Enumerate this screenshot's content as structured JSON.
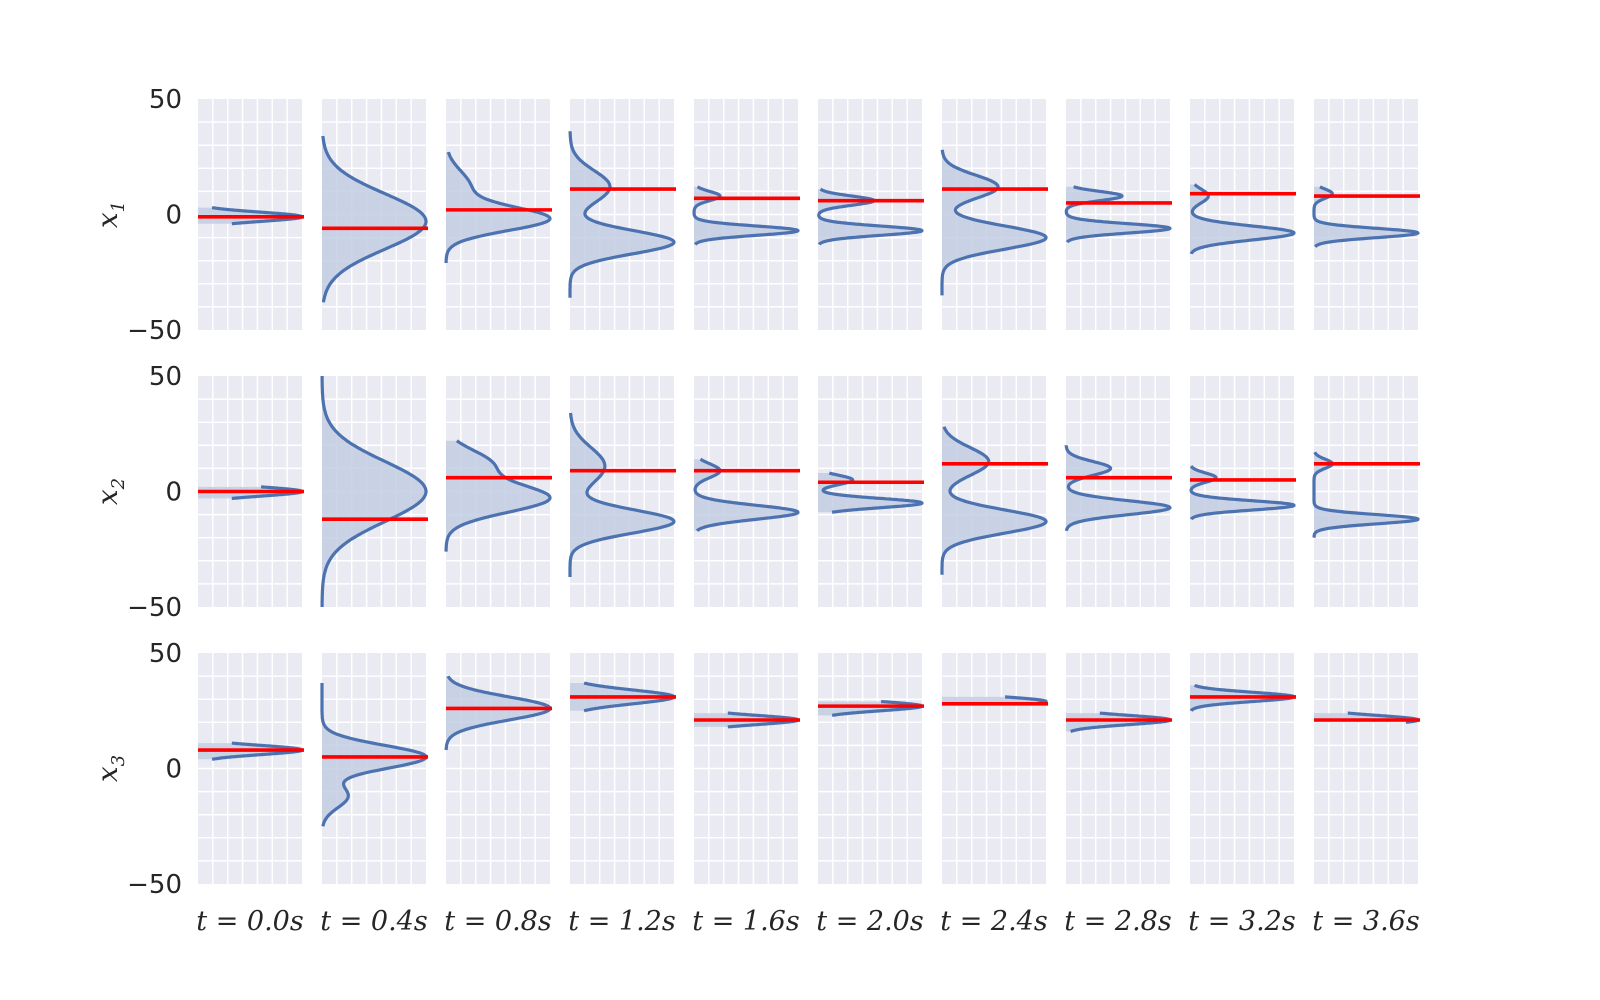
{
  "chart_data": {
    "type": "area",
    "description_of_marks": "grid of density curves (blue, filled) with red horizontal reference line per panel",
    "ylim": [
      -50,
      50
    ],
    "yticks": [
      "50",
      "0",
      "−50"
    ],
    "grid": true,
    "colors": {
      "panel_bg": "#eaeaf2",
      "grid": "#ffffff",
      "density": "#4c72b0",
      "fill": "#c3cee3",
      "reference": "#ff0000"
    },
    "rows": [
      {
        "label": "x",
        "sub": "1"
      },
      {
        "label": "x",
        "sub": "2"
      },
      {
        "label": "x",
        "sub": "3"
      }
    ],
    "columns": [
      "t = 0.0s",
      "t = 0.4s",
      "t = 0.8s",
      "t = 1.2s",
      "t = 1.6s",
      "t = 2.0s",
      "t = 2.4s",
      "t = 2.8s",
      "t = 3.2s",
      "t = 3.6s"
    ],
    "panels": [
      [
        {
          "ref": -1,
          "components": [
            [
              -1,
              2,
              1
            ]
          ],
          "ymin": -4,
          "ymax": 3
        },
        {
          "ref": -6,
          "components": [
            [
              -3,
              12,
              1
            ]
          ],
          "ymin": -38,
          "ymax": 34
        },
        {
          "ref": 2,
          "components": [
            [
              -2,
              5,
              0.75
            ],
            [
              12,
              7,
              0.25
            ]
          ],
          "ymin": -21,
          "ymax": 27
        },
        {
          "ref": 11,
          "components": [
            [
              -12,
              5,
              0.65
            ],
            [
              12,
              7,
              0.35
            ]
          ],
          "ymin": -36,
          "ymax": 36
        },
        {
          "ref": 7,
          "components": [
            [
              -7,
              2,
              0.8
            ],
            [
              8,
              2,
              0.2
            ]
          ],
          "ymin": -13,
          "ymax": 12
        },
        {
          "ref": 6,
          "components": [
            [
              -7,
              2,
              0.65
            ],
            [
              6,
              2,
              0.35
            ]
          ],
          "ymin": -13,
          "ymax": 11
        },
        {
          "ref": 11,
          "components": [
            [
              -10,
              5,
              0.65
            ],
            [
              12,
              5,
              0.35
            ]
          ],
          "ymin": -35,
          "ymax": 28
        },
        {
          "ref": 5,
          "components": [
            [
              -6,
              2,
              0.65
            ],
            [
              8,
              2,
              0.35
            ]
          ],
          "ymin": -12,
          "ymax": 12
        },
        {
          "ref": 9,
          "components": [
            [
              -8,
              3,
              0.85
            ],
            [
              8,
              3,
              0.15
            ]
          ],
          "ymin": -17,
          "ymax": 13
        },
        {
          "ref": 8,
          "components": [
            [
              -8,
              2,
              0.85
            ],
            [
              9,
              2,
              0.15
            ]
          ],
          "ymin": -14,
          "ymax": 12
        }
      ],
      [
        {
          "ref": 0,
          "components": [
            [
              0,
              2,
              1
            ]
          ],
          "ymin": -3,
          "ymax": 2
        },
        {
          "ref": -12,
          "components": [
            [
              0,
              13,
              1
            ]
          ],
          "ymin": -50,
          "ymax": 50
        },
        {
          "ref": 6,
          "components": [
            [
              -3,
              6,
              0.7
            ],
            [
              12,
              6,
              0.3
            ]
          ],
          "ymin": -26,
          "ymax": 22
        },
        {
          "ref": 9,
          "components": [
            [
              -13,
              5,
              0.65
            ],
            [
              11,
              8,
              0.35
            ]
          ],
          "ymin": -37,
          "ymax": 34
        },
        {
          "ref": 9,
          "components": [
            [
              -9,
              3,
              0.8
            ],
            [
              9,
              3,
              0.2
            ]
          ],
          "ymin": -17,
          "ymax": 14
        },
        {
          "ref": 4,
          "components": [
            [
              -5,
              2,
              0.75
            ],
            [
              5,
              2,
              0.25
            ]
          ],
          "ymin": -9,
          "ymax": 8
        },
        {
          "ref": 12,
          "components": [
            [
              -13,
              5,
              0.65
            ],
            [
              13,
              6,
              0.35
            ]
          ],
          "ymin": -36,
          "ymax": 28
        },
        {
          "ref": 6,
          "components": [
            [
              -7,
              3,
              0.7
            ],
            [
              10,
              3,
              0.3
            ]
          ],
          "ymin": -17,
          "ymax": 20
        },
        {
          "ref": 5,
          "components": [
            [
              -6,
              2,
              0.8
            ],
            [
              6,
              2,
              0.2
            ]
          ],
          "ymin": -12,
          "ymax": 11
        },
        {
          "ref": 12,
          "components": [
            [
              -12,
              2,
              0.85
            ],
            [
              12,
              2,
              0.15
            ]
          ],
          "ymin": -20,
          "ymax": 17
        }
      ],
      [
        {
          "ref": 8,
          "components": [
            [
              8,
              2,
              1
            ]
          ],
          "ymin": 4,
          "ymax": 11
        },
        {
          "ref": 5,
          "components": [
            [
              5,
              5,
              0.8
            ],
            [
              -12,
              5,
              0.2
            ]
          ],
          "ymin": -25,
          "ymax": 37
        },
        {
          "ref": 26,
          "components": [
            [
              26,
              5,
              1
            ]
          ],
          "ymin": 8,
          "ymax": 40
        },
        {
          "ref": 31,
          "components": [
            [
              31,
              3,
              1
            ]
          ],
          "ymin": 25,
          "ymax": 37
        },
        {
          "ref": 21,
          "components": [
            [
              21,
              2,
              1
            ]
          ],
          "ymin": 18,
          "ymax": 24
        },
        {
          "ref": 27,
          "components": [
            [
              27,
              2,
              1
            ]
          ],
          "ymin": 23,
          "ymax": 29
        },
        {
          "ref": 28,
          "components": [
            [
              29,
              2,
              1
            ]
          ],
          "ymin": 28,
          "ymax": 31
        },
        {
          "ref": 21,
          "components": [
            [
              21,
              2,
              1
            ]
          ],
          "ymin": 16,
          "ymax": 24
        },
        {
          "ref": 31,
          "components": [
            [
              31,
              2,
              1
            ]
          ],
          "ymin": 25,
          "ymax": 36
        },
        {
          "ref": 21,
          "components": [
            [
              21,
              2,
              1
            ]
          ],
          "ymin": 20,
          "ymax": 24
        }
      ]
    ]
  }
}
